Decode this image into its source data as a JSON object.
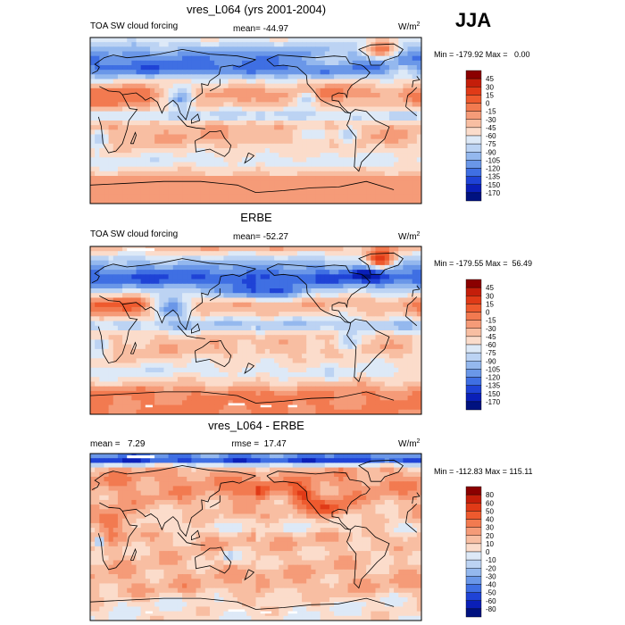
{
  "season": "JJA",
  "chart_data": [
    {
      "type": "heatmap",
      "title": "vres_L064 (yrs 2001-2004)",
      "left_label": "TOA SW cloud forcing",
      "center_label": "mean= -44.97",
      "units": "W/m",
      "units_sup": "2",
      "stats": "Min = -179.92 Max =   0.00",
      "mean": -44.97,
      "min": -179.92,
      "max": 0.0,
      "colorbar": {
        "levels": [
          45,
          30,
          15,
          0,
          -15,
          -30,
          -45,
          -60,
          -75,
          -90,
          -105,
          -120,
          -135,
          -150,
          -170
        ],
        "labels": [
          "45",
          "30",
          "15",
          "0",
          "-15",
          "-30",
          "-45",
          "-60",
          "-75",
          "-90",
          "-105",
          "-120",
          "-135",
          "-150",
          "-170"
        ],
        "colors": [
          "#8b0000",
          "#c41e0a",
          "#e03a17",
          "#ee5a2e",
          "#f27a50",
          "#f59b78",
          "#f8bea2",
          "#fbdccb",
          "#dde9f7",
          "#bcd3f3",
          "#94b8ee",
          "#6a97e8",
          "#3f6fe3",
          "#1f43d6",
          "#0a1fb8",
          "#001280"
        ]
      }
    },
    {
      "type": "heatmap",
      "title": "ERBE",
      "left_label": "TOA SW cloud forcing",
      "center_label": "mean= -52.27",
      "units": "W/m",
      "units_sup": "2",
      "stats": "Min = -179.55 Max =  56.49",
      "mean": -52.27,
      "min": -179.55,
      "max": 56.49,
      "colorbar": {
        "levels": [
          45,
          30,
          15,
          0,
          -15,
          -30,
          -45,
          -60,
          -75,
          -90,
          -105,
          -120,
          -135,
          -150,
          -170
        ],
        "labels": [
          "45",
          "30",
          "15",
          "0",
          "-15",
          "-30",
          "-45",
          "-60",
          "-75",
          "-90",
          "-105",
          "-120",
          "-135",
          "-150",
          "-170"
        ],
        "colors": [
          "#8b0000",
          "#c41e0a",
          "#e03a17",
          "#ee5a2e",
          "#f27a50",
          "#f59b78",
          "#f8bea2",
          "#fbdccb",
          "#dde9f7",
          "#bcd3f3",
          "#94b8ee",
          "#6a97e8",
          "#3f6fe3",
          "#1f43d6",
          "#0a1fb8",
          "#001280"
        ]
      }
    },
    {
      "type": "heatmap",
      "title": "vres_L064 - ERBE",
      "left_label": "mean =   7.29",
      "center_label": "rmse =  17.47",
      "units": "W/m",
      "units_sup": "2",
      "stats": "Min = -112.83 Max = 115.11",
      "mean": 7.29,
      "rmse": 17.47,
      "min": -112.83,
      "max": 115.11,
      "colorbar": {
        "levels": [
          80,
          60,
          50,
          40,
          30,
          20,
          10,
          0,
          -10,
          -20,
          -30,
          -40,
          -50,
          -60,
          -80
        ],
        "labels": [
          "80",
          "60",
          "50",
          "40",
          "30",
          "20",
          "10",
          "0",
          "-10",
          "-20",
          "-30",
          "-40",
          "-50",
          "-60",
          "-80"
        ],
        "colors": [
          "#8b0000",
          "#c41e0a",
          "#e03a17",
          "#ee5a2e",
          "#f27a50",
          "#f59b78",
          "#f8bea2",
          "#fbdccb",
          "#dde9f7",
          "#bcd3f3",
          "#94b8ee",
          "#6a97e8",
          "#3f6fe3",
          "#1f43d6",
          "#0a1fb8",
          "#001280"
        ]
      }
    }
  ]
}
